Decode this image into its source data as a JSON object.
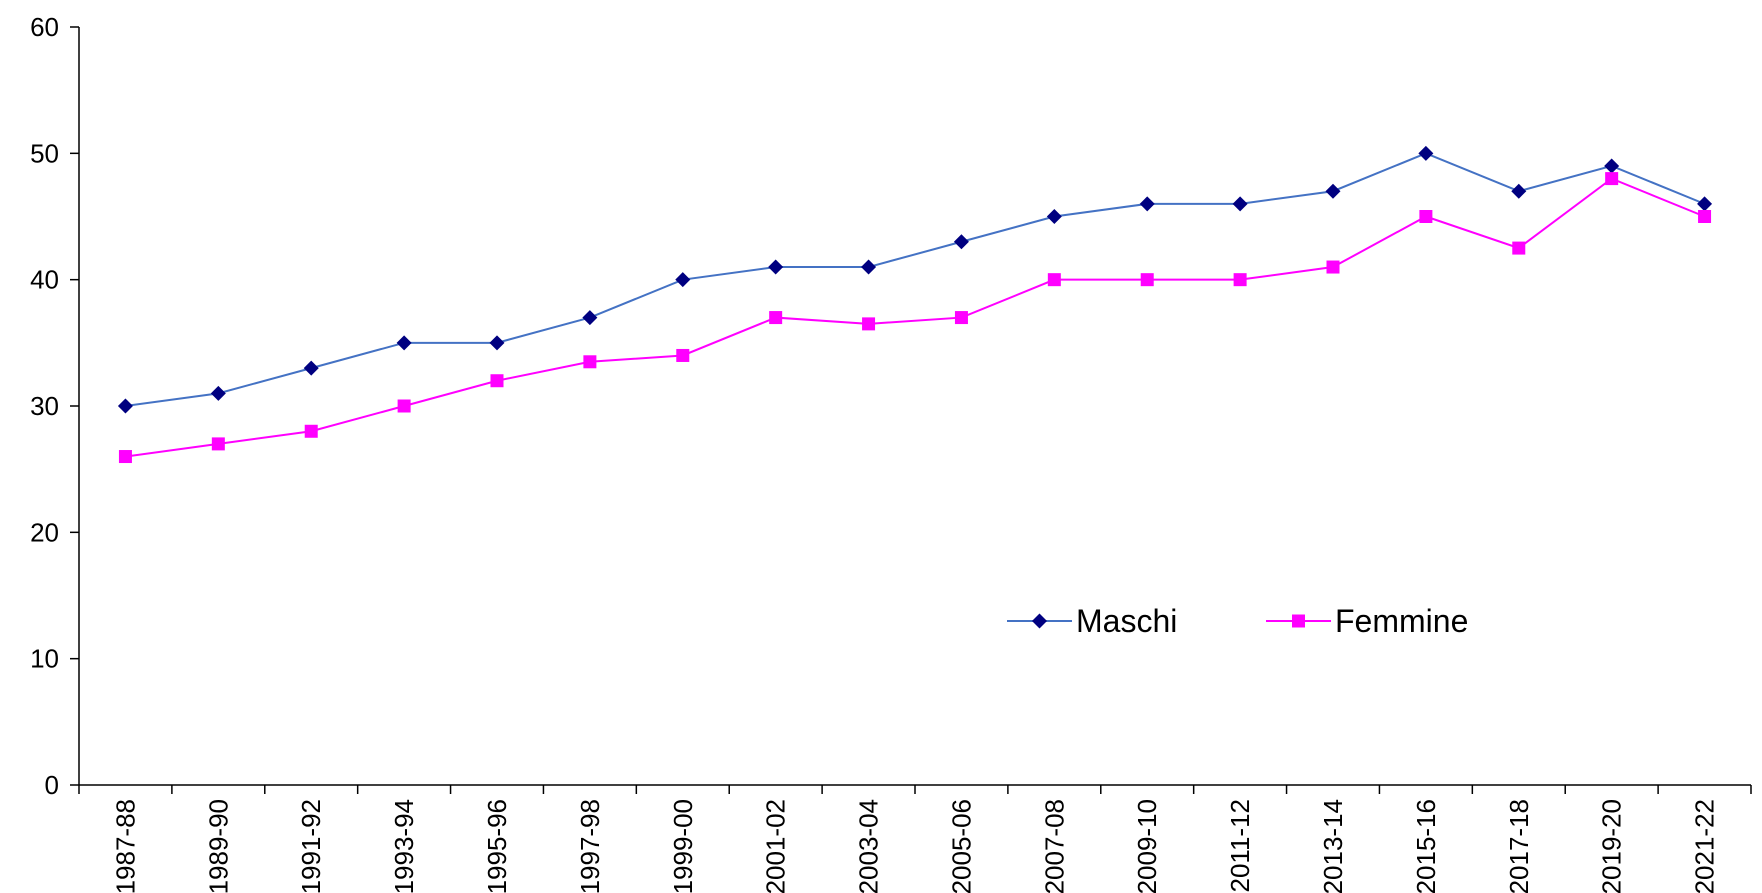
{
  "chart_data": {
    "type": "line",
    "title": "",
    "xlabel": "",
    "ylabel": "",
    "categories": [
      "1987-88",
      "1989-90",
      "1991-92",
      "1993-94",
      "1995-96",
      "1997-98",
      "1999-00",
      "2001-02",
      "2003-04",
      "2005-06",
      "2007-08",
      "2009-10",
      "2011-12",
      "2013-14",
      "2015-16",
      "2017-18",
      "2019-20",
      "2021-22"
    ],
    "ylim": [
      0,
      60
    ],
    "yticks": [
      0,
      10,
      20,
      30,
      40,
      50,
      60
    ],
    "grid": false,
    "legend_position": "center-right",
    "series": [
      {
        "name": "Maschi",
        "color": "#4472C4",
        "marker_color": "#000080",
        "marker": "diamond",
        "values": [
          30,
          31,
          33,
          35,
          35,
          37,
          40,
          41,
          41,
          43,
          45,
          46,
          46,
          47,
          50,
          47,
          49,
          46
        ]
      },
      {
        "name": "Femmine",
        "color": "#FF00FF",
        "marker_color": "#FF00FF",
        "marker": "square",
        "values": [
          26,
          27,
          28,
          30,
          32,
          33.5,
          34,
          37,
          36.5,
          37,
          40,
          40,
          40,
          41,
          45,
          42.5,
          48,
          45
        ]
      }
    ]
  }
}
